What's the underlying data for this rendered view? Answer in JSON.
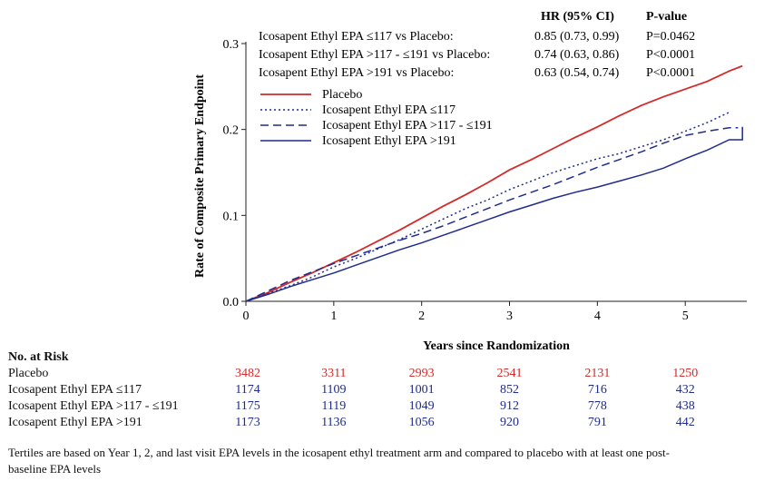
{
  "colors": {
    "placebo": "#d32a2a",
    "epa": "#1f2c8c",
    "axis": "#222222"
  },
  "chart_data": {
    "type": "line",
    "ylabel": "Rate of Composite Primary Endpoint",
    "xlabel": "Years since Randomization",
    "xlim": [
      0,
      5.7
    ],
    "ylim": [
      0,
      0.3
    ],
    "x_ticks": [
      "0",
      "1",
      "2",
      "3",
      "4",
      "5"
    ],
    "y_ticks": [
      "0.0",
      "0.1",
      "0.2",
      "0.3"
    ],
    "series": [
      {
        "name": "Placebo",
        "style": "solid",
        "color": "#d32a2a",
        "x": [
          0,
          0.25,
          0.5,
          0.75,
          1.0,
          1.25,
          1.5,
          1.75,
          2.0,
          2.25,
          2.5,
          2.75,
          3.0,
          3.25,
          3.5,
          3.75,
          4.0,
          4.25,
          4.5,
          4.75,
          5.0,
          5.25,
          5.5,
          5.65
        ],
        "y": [
          0,
          0.01,
          0.022,
          0.033,
          0.045,
          0.057,
          0.07,
          0.083,
          0.097,
          0.111,
          0.124,
          0.138,
          0.153,
          0.165,
          0.178,
          0.191,
          0.203,
          0.216,
          0.228,
          0.238,
          0.247,
          0.256,
          0.268,
          0.274
        ]
      },
      {
        "name": "Icosapent Ethyl EPA ≤117",
        "style": "dotted",
        "color": "#1f2c8c",
        "x": [
          0,
          0.25,
          0.5,
          0.75,
          1.0,
          1.25,
          1.5,
          1.75,
          2.0,
          2.25,
          2.5,
          2.75,
          3.0,
          3.25,
          3.5,
          3.75,
          4.0,
          4.25,
          4.5,
          4.75,
          5.0,
          5.25,
          5.5
        ],
        "y": [
          0,
          0.009,
          0.018,
          0.028,
          0.04,
          0.05,
          0.061,
          0.072,
          0.084,
          0.096,
          0.108,
          0.118,
          0.13,
          0.14,
          0.15,
          0.158,
          0.166,
          0.172,
          0.18,
          0.188,
          0.198,
          0.208,
          0.22
        ]
      },
      {
        "name": "Icosapent Ethyl EPA >117 - ≤191",
        "style": "dashed",
        "color": "#1f2c8c",
        "x": [
          0,
          0.25,
          0.5,
          0.75,
          1.0,
          1.25,
          1.5,
          1.75,
          2.0,
          2.25,
          2.5,
          2.75,
          3.0,
          3.25,
          3.5,
          3.75,
          4.0,
          4.25,
          4.5,
          4.75,
          5.0,
          5.25,
          5.5,
          5.6
        ],
        "y": [
          0,
          0.012,
          0.024,
          0.034,
          0.044,
          0.053,
          0.062,
          0.071,
          0.079,
          0.088,
          0.098,
          0.108,
          0.118,
          0.127,
          0.136,
          0.146,
          0.156,
          0.165,
          0.174,
          0.184,
          0.193,
          0.198,
          0.202,
          0.202
        ]
      },
      {
        "name": "Icosapent Ethyl EPA >191",
        "style": "solid",
        "color": "#1f2c8c",
        "x": [
          0,
          0.25,
          0.5,
          0.75,
          1.0,
          1.25,
          1.5,
          1.75,
          2.0,
          2.25,
          2.5,
          2.75,
          3.0,
          3.25,
          3.5,
          3.75,
          4.0,
          4.25,
          4.5,
          4.75,
          5.0,
          5.25,
          5.5,
          5.65,
          5.65
        ],
        "y": [
          0,
          0.008,
          0.017,
          0.025,
          0.033,
          0.042,
          0.051,
          0.06,
          0.068,
          0.077,
          0.086,
          0.095,
          0.104,
          0.112,
          0.12,
          0.127,
          0.133,
          0.14,
          0.147,
          0.155,
          0.166,
          0.176,
          0.188,
          0.188,
          0.203
        ]
      }
    ],
    "hr_table": {
      "headers": [
        "HR (95% CI)",
        "P-value"
      ],
      "rows": [
        {
          "label": "Icosapent Ethyl EPA ≤117 vs Placebo:",
          "hr": "0.85 (0.73, 0.99)",
          "p": "P=0.0462"
        },
        {
          "label": "Icosapent Ethyl EPA >117 - ≤191 vs Placebo:",
          "hr": "0.74 (0.63, 0.86)",
          "p": "P<0.0001"
        },
        {
          "label": "Icosapent Ethyl EPA >191 vs Placebo:",
          "hr": "0.63 (0.54, 0.74)",
          "p": "P<0.0001"
        }
      ]
    },
    "legend": [
      "Placebo",
      "Icosapent Ethyl EPA ≤117",
      "Icosapent Ethyl EPA >117 - ≤191",
      "Icosapent Ethyl EPA >191"
    ]
  },
  "risk_table": {
    "title": "No. at Risk",
    "rows": [
      {
        "label": "Placebo",
        "color": "#d32a2a",
        "values": [
          "3482",
          "3311",
          "2993",
          "2541",
          "2131",
          "1250"
        ]
      },
      {
        "label": "Icosapent Ethyl EPA ≤117",
        "color": "#1f2c8c",
        "values": [
          "1174",
          "1109",
          "1001",
          "852",
          "716",
          "432"
        ]
      },
      {
        "label": "Icosapent Ethyl EPA >117 - ≤191",
        "color": "#1f2c8c",
        "values": [
          "1175",
          "1119",
          "1049",
          "912",
          "778",
          "438"
        ]
      },
      {
        "label": "Icosapent Ethyl EPA >191",
        "color": "#1f2c8c",
        "values": [
          "1173",
          "1136",
          "1056",
          "920",
          "791",
          "442"
        ]
      }
    ]
  },
  "footnote": "Tertiles are based on Year 1, 2, and last visit EPA levels in the icosapent ethyl treatment arm and compared to placebo with at least one post-baseline EPA levels"
}
